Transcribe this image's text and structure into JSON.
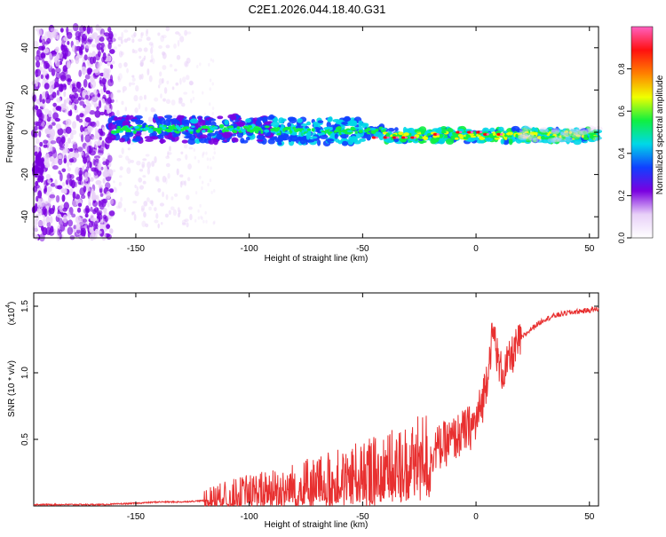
{
  "title": "C2E1.2026.044.18.40.G31",
  "chart_data": [
    {
      "type": "heatmap",
      "xlabel": "Height of straight line (km)",
      "ylabel": "Frequency (Hz)",
      "xlim": [
        -195,
        54
      ],
      "ylim": [
        -50,
        50
      ],
      "xticks": [
        -150,
        -100,
        -50,
        0,
        50
      ],
      "xtick_labels": [
        "-150",
        "-100",
        "-50",
        "0",
        "50"
      ],
      "yticks": [
        40,
        20,
        0,
        -20,
        -40
      ],
      "ytick_labels": [
        "40",
        "20",
        "0",
        "-20",
        "-40"
      ],
      "colorbar": {
        "label": "Normalized spectral amplitude",
        "range": [
          0,
          1
        ],
        "ticks": [
          0.0,
          0.2,
          0.4,
          0.6,
          0.8
        ],
        "tick_labels": [
          "0.0",
          "0.2",
          "0.4",
          "0.6",
          "0.8"
        ],
        "colormap": [
          "#ffffff",
          "#e8d0f8",
          "#7a00e0",
          "#1040ff",
          "#00d8e8",
          "#10f040",
          "#f0ff00",
          "#ff8000",
          "#ff1010",
          "#ff60c0"
        ]
      },
      "grid": false
    },
    {
      "type": "line",
      "xlabel": "Height of straight line (km)",
      "ylabel": "SNR (10 * v/v)",
      "scale_label": "(x10",
      "scale_exp": "4",
      "xlim": [
        -195,
        54
      ],
      "ylim": [
        0,
        1.6
      ],
      "xticks": [
        -150,
        -100,
        -50,
        0,
        50
      ],
      "xtick_labels": [
        "-150",
        "-100",
        "-50",
        "0",
        "50"
      ],
      "yticks": [
        0.5,
        1.0,
        1.5
      ],
      "ytick_labels": [
        "0.5",
        "1.0",
        "1.5"
      ],
      "color": "#e83030",
      "series": [
        {
          "x": [
            -195,
            -180,
            -165,
            -150,
            -140,
            -130,
            -120,
            -110,
            -100,
            -90,
            -80,
            -70,
            -60,
            -50,
            -45,
            -40,
            -35,
            -30,
            -25,
            -20,
            -15,
            -10,
            -5,
            0,
            3,
            5,
            7,
            8,
            10,
            12,
            15,
            18,
            20,
            25,
            30,
            35,
            40,
            45,
            50,
            54
          ],
          "y": [
            0.01,
            0.01,
            0.01,
            0.02,
            0.03,
            0.03,
            0.04,
            0.07,
            0.1,
            0.12,
            0.14,
            0.17,
            0.2,
            0.24,
            0.26,
            0.28,
            0.3,
            0.33,
            0.37,
            0.41,
            0.45,
            0.5,
            0.56,
            0.62,
            0.8,
            1.0,
            1.25,
            1.3,
            1.05,
            1.0,
            1.1,
            1.2,
            1.26,
            1.34,
            1.4,
            1.43,
            1.45,
            1.46,
            1.47,
            1.48
          ]
        }
      ],
      "grid": false
    }
  ]
}
